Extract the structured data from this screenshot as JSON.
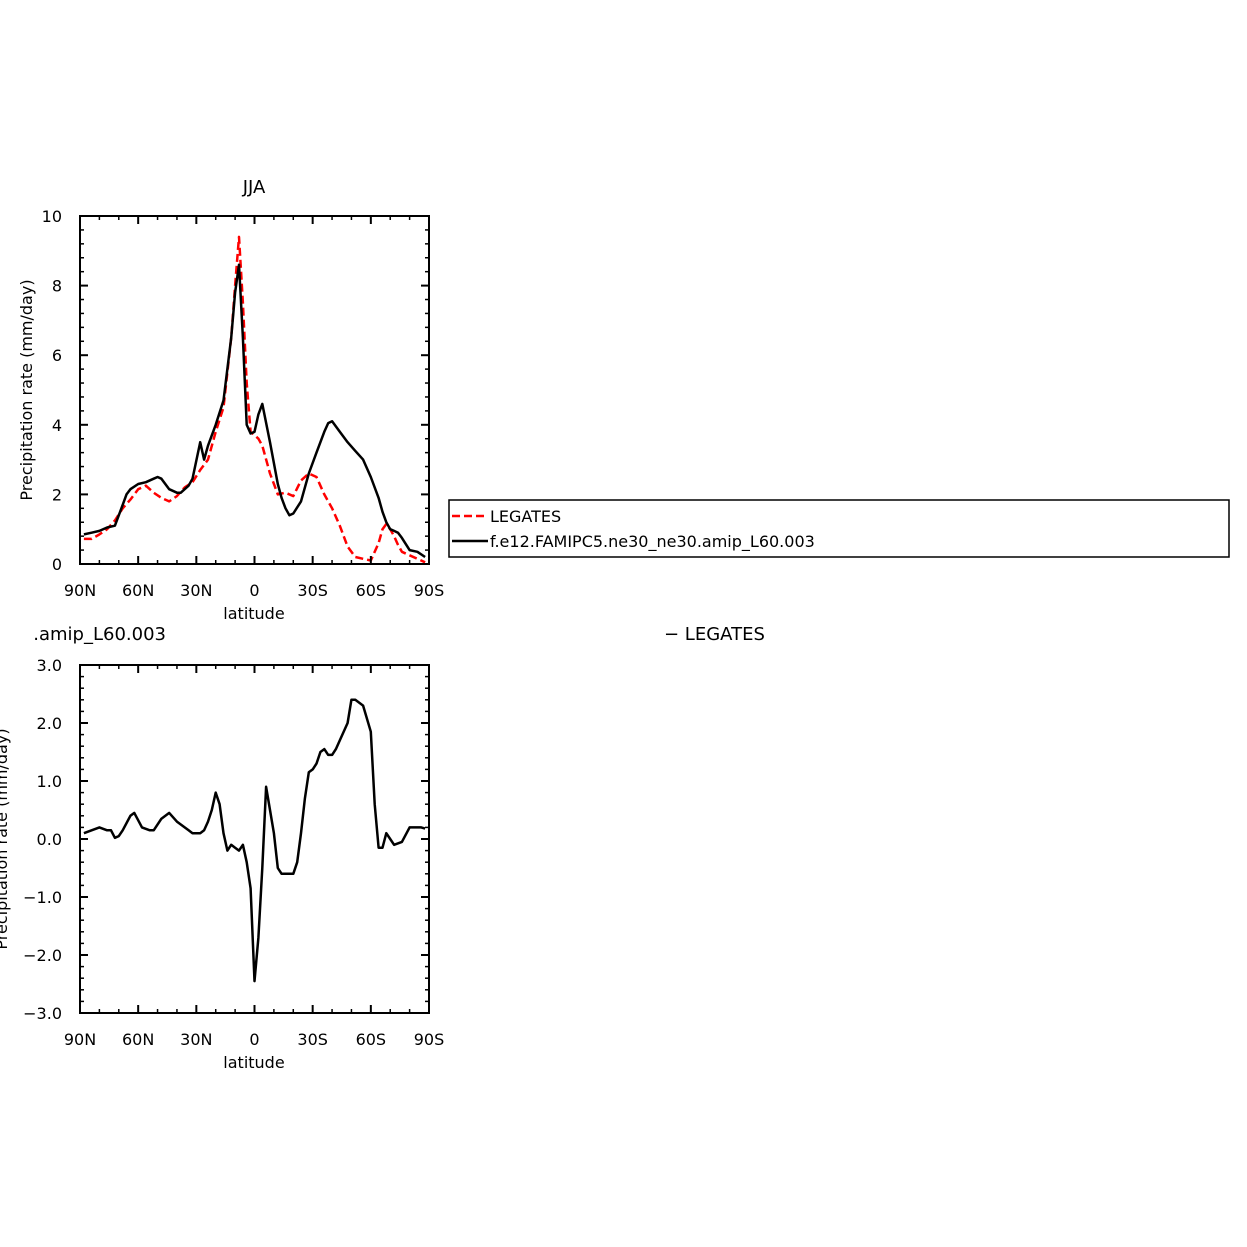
{
  "chart_data": [
    {
      "type": "line",
      "title": "JJA",
      "xlabel": "latitude",
      "ylabel": "Precipitation rate (mm/day)",
      "xlim": [
        90,
        -90
      ],
      "ylim": [
        0,
        10
      ],
      "x_tick_values": [
        90,
        60,
        30,
        0,
        -30,
        -60,
        -90
      ],
      "x_tick_labels": [
        "90N",
        "60N",
        "30N",
        "0",
        "30S",
        "60S",
        "90S"
      ],
      "y_tick_values": [
        0,
        2,
        4,
        6,
        8,
        10
      ],
      "y_tick_labels": [
        "0",
        "2",
        "4",
        "6",
        "8",
        "10"
      ],
      "legend": {
        "entries": [
          "LEGATES",
          "f.e12.FAMIPC5.ne30_ne30.amip_L60.003"
        ],
        "placement": "right of plot"
      },
      "series": [
        {
          "name": "LEGATES",
          "color": "#ff0000",
          "dash": "dashed",
          "x": [
            88,
            84,
            80,
            76,
            72,
            68,
            64,
            60,
            56,
            52,
            48,
            44,
            40,
            36,
            32,
            28,
            24,
            20,
            16,
            12,
            10,
            8,
            6,
            4,
            2,
            0,
            -2,
            -4,
            -8,
            -12,
            -16,
            -20,
            -24,
            -28,
            -32,
            -36,
            -40,
            -44,
            -48,
            -52,
            -56,
            -60,
            -64,
            -66,
            -68,
            -70,
            -72,
            -74,
            -76,
            -80,
            -84,
            -88
          ],
          "y": [
            0.72,
            0.72,
            0.85,
            1.0,
            1.25,
            1.6,
            1.85,
            2.15,
            2.25,
            2.05,
            1.9,
            1.8,
            1.95,
            2.2,
            2.35,
            2.7,
            3.0,
            3.8,
            4.5,
            6.5,
            8.0,
            9.4,
            7.5,
            5.2,
            3.8,
            3.7,
            3.6,
            3.4,
            2.6,
            2.0,
            2.05,
            1.95,
            2.4,
            2.6,
            2.5,
            2.0,
            1.6,
            1.1,
            0.5,
            0.2,
            0.15,
            0.1,
            0.6,
            1.0,
            1.15,
            1.0,
            0.8,
            0.55,
            0.35,
            0.25,
            0.15,
            0.05
          ]
        },
        {
          "name": "f.e12.FAMIPC5.ne30_ne30.amip_L60.003",
          "color": "#000000",
          "dash": "solid",
          "x": [
            88,
            84,
            80,
            76,
            72,
            70,
            68,
            66,
            64,
            60,
            56,
            52,
            50,
            48,
            46,
            44,
            40,
            38,
            34,
            32,
            28,
            26,
            24,
            20,
            16,
            12,
            10,
            8,
            6,
            4,
            2,
            0,
            -2,
            -4,
            -8,
            -12,
            -14,
            -16,
            -18,
            -20,
            -24,
            -28,
            -32,
            -36,
            -38,
            -40,
            -44,
            -48,
            -52,
            -56,
            -60,
            -64,
            -66,
            -68,
            -70,
            -72,
            -74,
            -76,
            -80,
            -84,
            -88
          ],
          "y": [
            0.85,
            0.9,
            0.95,
            1.05,
            1.1,
            1.4,
            1.7,
            2.0,
            2.15,
            2.3,
            2.35,
            2.45,
            2.5,
            2.45,
            2.3,
            2.15,
            2.05,
            2.05,
            2.25,
            2.45,
            3.5,
            3.0,
            3.4,
            4.0,
            4.7,
            6.5,
            7.8,
            8.6,
            6.5,
            4.0,
            3.75,
            3.8,
            4.3,
            4.6,
            3.5,
            2.3,
            1.9,
            1.6,
            1.4,
            1.45,
            1.8,
            2.6,
            3.2,
            3.8,
            4.05,
            4.1,
            3.8,
            3.5,
            3.25,
            3.0,
            2.5,
            1.9,
            1.5,
            1.2,
            1.0,
            0.95,
            0.9,
            0.75,
            0.4,
            0.35,
            0.2
          ]
        }
      ]
    },
    {
      "type": "line",
      "title": ".amip_L60.003",
      "title_right": "− LEGATES",
      "xlabel": "latitude",
      "ylabel": "Precipitation rate (mm/day)",
      "xlim": [
        90,
        -90
      ],
      "ylim": [
        -3.0,
        3.0
      ],
      "x_tick_values": [
        90,
        60,
        30,
        0,
        -30,
        -60,
        -90
      ],
      "x_tick_labels": [
        "90N",
        "60N",
        "30N",
        "0",
        "30S",
        "60S",
        "90S"
      ],
      "y_tick_values": [
        -3.0,
        -2.0,
        -1.0,
        0.0,
        1.0,
        2.0,
        3.0
      ],
      "y_tick_labels": [
        "−3.0",
        "−2.0",
        "−1.0",
        "0.0",
        "1.0",
        "2.0",
        "3.0"
      ],
      "series": [
        {
          "color": "#000000",
          "dash": "solid",
          "x": [
            88,
            84,
            80,
            76,
            74,
            72,
            70,
            68,
            64,
            62,
            58,
            54,
            52,
            48,
            44,
            40,
            36,
            34,
            32,
            28,
            26,
            24,
            22,
            20,
            18,
            16,
            14,
            12,
            10,
            8,
            6,
            4,
            2,
            0,
            -2,
            -4,
            -6,
            -8,
            -10,
            -12,
            -14,
            -16,
            -20,
            -22,
            -24,
            -26,
            -28,
            -30,
            -32,
            -34,
            -36,
            -38,
            -40,
            -42,
            -44,
            -48,
            -50,
            -52,
            -56,
            -60,
            -62,
            -64,
            -66,
            -68,
            -70,
            -72,
            -76,
            -80,
            -84,
            -86,
            -88
          ],
          "y": [
            0.1,
            0.15,
            0.2,
            0.15,
            0.15,
            0.02,
            0.05,
            0.15,
            0.4,
            0.45,
            0.2,
            0.15,
            0.15,
            0.35,
            0.45,
            0.3,
            0.2,
            0.15,
            0.1,
            0.1,
            0.15,
            0.3,
            0.5,
            0.8,
            0.6,
            0.1,
            -0.2,
            -0.1,
            -0.15,
            -0.2,
            -0.1,
            -0.4,
            -0.85,
            -2.45,
            -1.7,
            -0.5,
            0.9,
            0.5,
            0.1,
            -0.5,
            -0.6,
            -0.6,
            -0.6,
            -0.4,
            0.1,
            0.7,
            1.15,
            1.2,
            1.3,
            1.5,
            1.55,
            1.45,
            1.45,
            1.55,
            1.7,
            2.0,
            2.4,
            2.4,
            2.3,
            1.85,
            0.6,
            -0.15,
            -0.15,
            0.1,
            0.0,
            -0.1,
            -0.05,
            0.2,
            0.2,
            0.2,
            0.18
          ]
        }
      ]
    }
  ]
}
